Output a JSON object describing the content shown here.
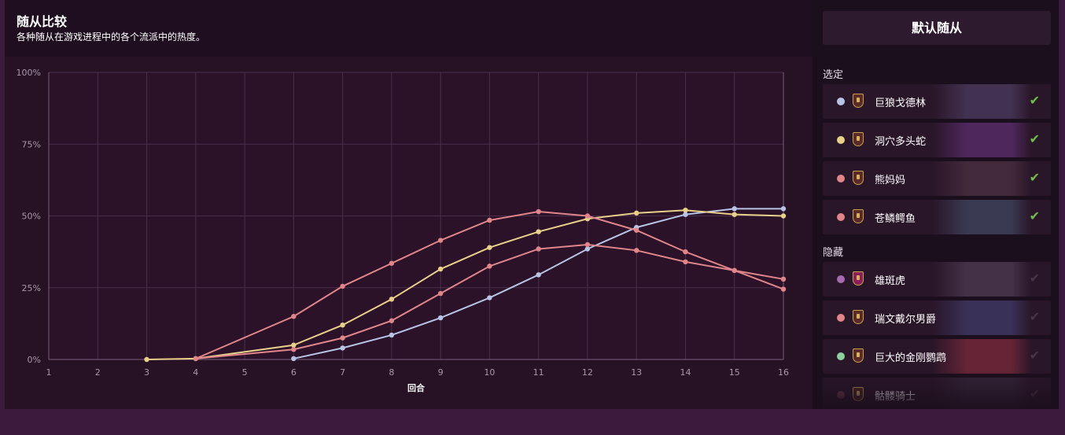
{
  "header": {
    "title": "随从比较",
    "subtitle": "各种随从在游戏进程中的各个流派中的热度。"
  },
  "chart_data": {
    "type": "line",
    "xlabel": "回合",
    "ylabel": "",
    "x": [
      1,
      2,
      3,
      4,
      5,
      6,
      7,
      8,
      9,
      10,
      11,
      12,
      13,
      14,
      15,
      16
    ],
    "xlim": [
      1,
      16
    ],
    "ylim": [
      0,
      100
    ],
    "y_ticks": [
      "0%",
      "25%",
      "50%",
      "75%",
      "100%"
    ],
    "grid": true,
    "series": [
      {
        "name": "巨狼戈德林",
        "color": "#b7c4e6",
        "points": [
          [
            6,
            0.3
          ],
          [
            7,
            4
          ],
          [
            8,
            8.5
          ],
          [
            9,
            14.5
          ],
          [
            10,
            21.5
          ],
          [
            11,
            29.5
          ],
          [
            12,
            38.5
          ],
          [
            13,
            46
          ],
          [
            14,
            50.5
          ],
          [
            15,
            52.5
          ],
          [
            16,
            52.5
          ]
        ]
      },
      {
        "name": "洞穴多头蛇",
        "color": "#e8cf8a",
        "points": [
          [
            3,
            0
          ],
          [
            4,
            0.3
          ],
          [
            6,
            5
          ],
          [
            7,
            12
          ],
          [
            8,
            21
          ],
          [
            9,
            31.5
          ],
          [
            10,
            39
          ],
          [
            11,
            44.5
          ],
          [
            12,
            49
          ],
          [
            13,
            51
          ],
          [
            14,
            52
          ],
          [
            15,
            50.5
          ],
          [
            16,
            50
          ]
        ]
      },
      {
        "name": "熊妈妈",
        "color": "#e0868a",
        "points": [
          [
            4,
            0.3
          ],
          [
            6,
            3.5
          ],
          [
            7,
            7.5
          ],
          [
            8,
            13.5
          ],
          [
            9,
            23
          ],
          [
            10,
            32.5
          ],
          [
            11,
            38.5
          ],
          [
            12,
            40
          ],
          [
            13,
            38
          ],
          [
            14,
            34
          ],
          [
            15,
            31
          ],
          [
            16,
            28
          ]
        ]
      },
      {
        "name": "苍鳞鳄鱼",
        "color": "#e0868a",
        "points": [
          [
            4,
            0.3
          ],
          [
            6,
            15
          ],
          [
            7,
            25.5
          ],
          [
            8,
            33.5
          ],
          [
            9,
            41.5
          ],
          [
            10,
            48.5
          ],
          [
            11,
            51.5
          ],
          [
            12,
            50
          ],
          [
            13,
            45
          ],
          [
            14,
            37.5
          ],
          [
            15,
            31
          ],
          [
            16,
            24.5
          ]
        ]
      }
    ]
  },
  "sidebar": {
    "default_button": "默认随从",
    "selected_label": "选定",
    "hidden_label": "隐藏",
    "check_glyph": "✔",
    "selected": [
      {
        "name": "巨狼戈德林",
        "dot_color": "#b7c4e6",
        "art_color": "#4b3a5e",
        "tribe_color": "#5a2a2a",
        "check_color": "#6fbf4a"
      },
      {
        "name": "洞穴多头蛇",
        "dot_color": "#e8cf8a",
        "art_color": "#5a2d6e",
        "tribe_color": "#5a2a2a",
        "check_color": "#6fbf4a"
      },
      {
        "name": "熊妈妈",
        "dot_color": "#e0868a",
        "art_color": "#4a3040",
        "tribe_color": "#5a2a2a",
        "check_color": "#6fbf4a"
      },
      {
        "name": "苍鳞鳄鱼",
        "dot_color": "#e0868a",
        "art_color": "#3f4560",
        "tribe_color": "#5a2a2a",
        "check_color": "#6fbf4a"
      }
    ],
    "hidden": [
      {
        "name": "雄斑虎",
        "dot_color": "#a56bb0",
        "art_color": "#4d3a52",
        "tribe_color": "#8a1f5c",
        "check_color": "#4a3448"
      },
      {
        "name": "瑞文戴尔男爵",
        "dot_color": "#e0868a",
        "art_color": "#3e3a66",
        "tribe_color": "#5a2a2a",
        "check_color": "#4a3448"
      },
      {
        "name": "巨大的金刚鹦鹉",
        "dot_color": "#8fcf9f",
        "art_color": "#7a2a3a",
        "tribe_color": "#5a2a2a",
        "check_color": "#4a3448"
      },
      {
        "name": "骷髅骑士",
        "dot_color": "#6a3a4a",
        "art_color": "#3a2a40",
        "tribe_color": "#4a2a2a",
        "check_color": "#4a3448"
      }
    ]
  }
}
